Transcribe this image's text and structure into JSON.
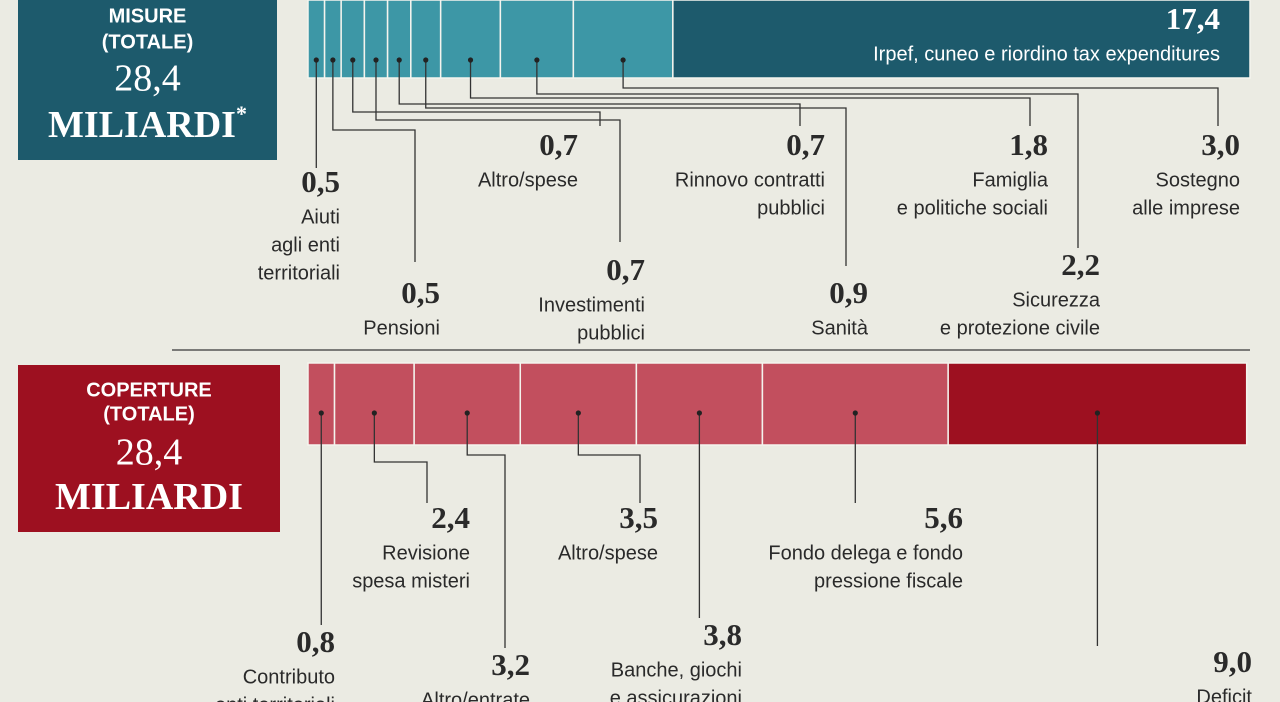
{
  "chart_data": [
    {
      "type": "stacked-bar",
      "title_lines": [
        "MISURE",
        "(TOTALE)"
      ],
      "total": {
        "value": 28.4,
        "label": "28,4"
      },
      "unit": "MILIARDI",
      "unit_mark": "*",
      "box_color": "#1d5a6c",
      "categories": [
        [
          "Aiuti",
          "agli enti",
          "territoriali"
        ],
        [
          "Pensioni"
        ],
        [
          "Altro/spese"
        ],
        [
          "Investimenti",
          "pubblici"
        ],
        [
          "Rinnovo contratti",
          "pubblici"
        ],
        [
          "Sanità"
        ],
        [
          "Famiglia",
          "e politiche sociali"
        ],
        [
          "Sicurezza",
          "e protezione civile"
        ],
        [
          "Sostegno",
          "alle imprese"
        ],
        [
          "Irpef, cuneo e riordino tax expenditures"
        ]
      ],
      "values": [
        0.5,
        0.5,
        0.7,
        0.7,
        0.7,
        0.9,
        1.8,
        2.2,
        3.0,
        17.4
      ],
      "value_labels": [
        "0,5",
        "0,5",
        "0,7",
        "0,7",
        "0,7",
        "0,9",
        "1,8",
        "2,2",
        "3,0",
        "17,4"
      ],
      "colors": [
        "#3d97a6",
        "#3d97a6",
        "#3d97a6",
        "#3d97a6",
        "#3d97a6",
        "#3d97a6",
        "#3d97a6",
        "#3d97a6",
        "#3d97a6",
        "#1d5a6c"
      ]
    },
    {
      "type": "stacked-bar",
      "title_lines": [
        "COPERTURE",
        "(TOTALE)"
      ],
      "total": {
        "value": 28.4,
        "label": "28,4"
      },
      "unit": "MILIARDI",
      "box_color": "#9d1020",
      "categories": [
        [
          "Contributo",
          "enti territoriali"
        ],
        [
          "Revisione",
          "spesa misteri"
        ],
        [
          "Altro/entrate"
        ],
        [
          "Altro/spese"
        ],
        [
          "Banche, giochi",
          "e assicurazioni"
        ],
        [
          "Fondo delega e fondo",
          "pressione fiscale"
        ],
        [
          "Deficit"
        ]
      ],
      "values": [
        0.8,
        2.4,
        3.2,
        3.5,
        3.8,
        5.6,
        9.0
      ],
      "value_labels": [
        "0,8",
        "2,4",
        "3,2",
        "3,5",
        "3,8",
        "5,6",
        "9,0"
      ],
      "colors": [
        "#c24f5e",
        "#c24f5e",
        "#c24f5e",
        "#c24f5e",
        "#c24f5e",
        "#c24f5e",
        "#9d1020"
      ]
    }
  ]
}
